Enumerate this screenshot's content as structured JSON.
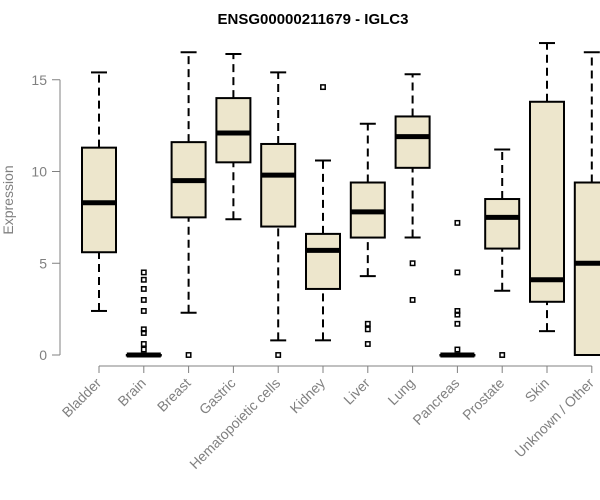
{
  "chart_data": {
    "type": "boxplot",
    "title": "ENSG00000211679 - IGLC3",
    "ylabel": "Expression",
    "xlabel": "",
    "ylim": [
      0,
      16.5
    ],
    "yticks": [
      0,
      5,
      10,
      15
    ],
    "colors": {
      "box_fill": "#ede6cc",
      "axis": "#808080",
      "title": "#000000"
    },
    "categories": [
      "Bladder",
      "Brain",
      "Breast",
      "Gastric",
      "Hematopoietic cells",
      "Kidney",
      "Liver",
      "Lung",
      "Pancreas",
      "Prostate",
      "Skin",
      "Unknown / Other"
    ],
    "boxes": [
      {
        "label": "Bladder",
        "min": 2.4,
        "q1": 5.6,
        "median": 8.3,
        "q3": 11.3,
        "max": 15.4,
        "outliers": []
      },
      {
        "label": "Brain",
        "min": 0,
        "q1": 0,
        "median": 0,
        "q3": 0,
        "max": 0,
        "outliers": [
          4.5,
          4.1,
          3.6,
          3.0,
          2.4,
          1.4,
          1.2,
          0.6,
          0.3
        ]
      },
      {
        "label": "Breast",
        "min": 2.3,
        "q1": 7.5,
        "median": 9.5,
        "q3": 11.6,
        "max": 16.5,
        "outliers": [
          0
        ]
      },
      {
        "label": "Gastric",
        "min": 7.4,
        "q1": 10.5,
        "median": 12.1,
        "q3": 14.0,
        "max": 16.4,
        "outliers": []
      },
      {
        "label": "Hematopoietic cells",
        "min": 0.8,
        "q1": 7.0,
        "median": 9.8,
        "q3": 11.5,
        "max": 15.4,
        "outliers": [
          0
        ]
      },
      {
        "label": "Kidney",
        "min": 0.8,
        "q1": 3.6,
        "median": 5.7,
        "q3": 6.6,
        "max": 10.6,
        "outliers": [
          14.6
        ]
      },
      {
        "label": "Liver",
        "min": 4.3,
        "q1": 6.4,
        "median": 7.8,
        "q3": 9.4,
        "max": 12.6,
        "outliers": [
          1.7,
          1.4,
          0.6
        ]
      },
      {
        "label": "Lung",
        "min": 6.4,
        "q1": 10.2,
        "median": 11.9,
        "q3": 13.0,
        "max": 15.3,
        "outliers": [
          5.0,
          3.0
        ]
      },
      {
        "label": "Pancreas",
        "min": 0,
        "q1": 0,
        "median": 0,
        "q3": 0,
        "max": 0,
        "outliers": [
          7.2,
          4.5,
          2.4,
          2.2,
          1.7,
          0.3
        ]
      },
      {
        "label": "Prostate",
        "min": 3.5,
        "q1": 5.8,
        "median": 7.5,
        "q3": 8.5,
        "max": 11.2,
        "outliers": [
          0
        ]
      },
      {
        "label": "Skin",
        "min": 1.3,
        "q1": 2.9,
        "median": 4.1,
        "q3": 13.8,
        "max": 17.0,
        "outliers": []
      },
      {
        "label": "Unknown / Other",
        "min": 0,
        "q1": 0,
        "median": 5.0,
        "q3": 9.4,
        "max": 16.5,
        "outliers": []
      }
    ],
    "grid": false,
    "legend": "none"
  }
}
